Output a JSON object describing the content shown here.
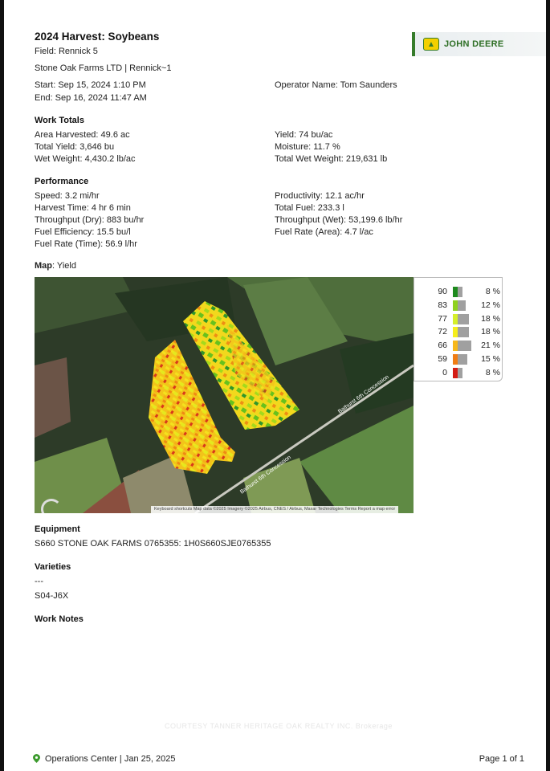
{
  "brand": {
    "name": "JOHN DEERE",
    "accent": "#367c2b"
  },
  "report": {
    "title": "2024 Harvest: Soybeans",
    "field": "Field:  Rennick 5",
    "farm": "Stone Oak Farms LTD  |  Rennick~1",
    "start": "Start: Sep 15, 2024 1:10 PM",
    "end": "End: Sep 16, 2024 11:47 AM",
    "operator": "Operator Name: Tom Saunders"
  },
  "work_totals": {
    "heading": "Work Totals",
    "left": [
      "Area Harvested: 49.6 ac",
      "Total Yield: 3,646 bu",
      "Wet Weight: 4,430.2 lb/ac"
    ],
    "right": [
      "Yield: 74 bu/ac",
      "Moisture: 11.7 %",
      "Total Wet Weight: 219,631 lb"
    ]
  },
  "performance": {
    "heading": "Performance",
    "left": [
      "Speed: 3.2 mi/hr",
      "Harvest Time: 4 hr 6 min",
      "Throughput (Dry): 883 bu/hr",
      "Fuel Efficiency: 15.5 bu/l",
      "Fuel Rate (Time): 56.9 l/hr"
    ],
    "right": [
      "Productivity: 12.1 ac/hr",
      "Total Fuel: 233.3 l",
      "Throughput (Wet): 53,199.6 lb/hr",
      "Fuel Rate (Area): 4.7 l/ac"
    ]
  },
  "map": {
    "heading_bold": "Map",
    "heading_rest": ": Yield",
    "road_label": "Bathurst 6th Concession",
    "attribution": "Keyboard shortcuts   Map data ©2025 Imagery ©2025 Airbus, CNES / Airbus, Maxar Technologies   Terms   Report a map error",
    "legend": [
      {
        "value": "90",
        "pct": "8 %",
        "share": 8,
        "color": "#1e8a1e"
      },
      {
        "value": "83",
        "pct": "12 %",
        "share": 12,
        "color": "#8fd11f"
      },
      {
        "value": "77",
        "pct": "18 %",
        "share": 18,
        "color": "#d6ef2a"
      },
      {
        "value": "72",
        "pct": "18 %",
        "share": 18,
        "color": "#f5ee1c"
      },
      {
        "value": "66",
        "pct": "21 %",
        "share": 21,
        "color": "#f7b81a"
      },
      {
        "value": "59",
        "pct": "15 %",
        "share": 15,
        "color": "#f07d14"
      },
      {
        "value": "0",
        "pct": "8 %",
        "share": 8,
        "color": "#d41c14"
      }
    ]
  },
  "equipment": {
    "heading": "Equipment",
    "value": "S660 STONE OAK FARMS 0765355: 1H0S660SJE0765355"
  },
  "varieties": {
    "heading": "Varieties",
    "items": [
      "---",
      "S04-J6X"
    ]
  },
  "work_notes": {
    "heading": "Work Notes"
  },
  "watermark": "COURTESY TANNER HERITAGE OAK REALTY INC. Brokerage",
  "footer": {
    "left": "Operations Center | Jan 25, 2025",
    "right": "Page 1 of 1"
  }
}
